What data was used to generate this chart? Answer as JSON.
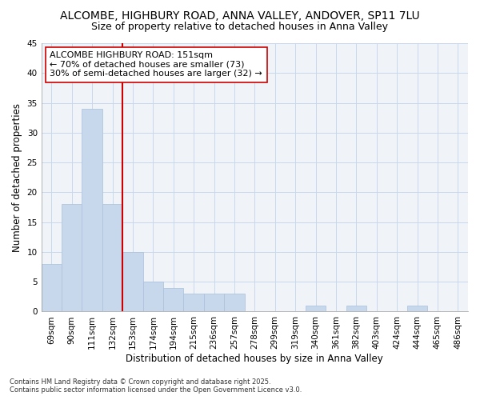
{
  "title1": "ALCOMBE, HIGHBURY ROAD, ANNA VALLEY, ANDOVER, SP11 7LU",
  "title2": "Size of property relative to detached houses in Anna Valley",
  "xlabel": "Distribution of detached houses by size in Anna Valley",
  "ylabel": "Number of detached properties",
  "categories": [
    "69sqm",
    "90sqm",
    "111sqm",
    "132sqm",
    "153sqm",
    "174sqm",
    "194sqm",
    "215sqm",
    "236sqm",
    "257sqm",
    "278sqm",
    "299sqm",
    "319sqm",
    "340sqm",
    "361sqm",
    "382sqm",
    "403sqm",
    "424sqm",
    "444sqm",
    "465sqm",
    "486sqm"
  ],
  "values": [
    8,
    18,
    34,
    18,
    10,
    5,
    4,
    3,
    3,
    3,
    0,
    0,
    0,
    1,
    0,
    1,
    0,
    0,
    1,
    0,
    0
  ],
  "bar_color": "#c8d8ec",
  "bar_edge_color": "#aabfda",
  "vline_color": "#cc0000",
  "annotation_text": "ALCOMBE HIGHBURY ROAD: 151sqm\n← 70% of detached houses are smaller (73)\n30% of semi-detached houses are larger (32) →",
  "annotation_box_color": "#ffffff",
  "annotation_box_edge_color": "#cc0000",
  "ylim": [
    0,
    45
  ],
  "yticks": [
    0,
    5,
    10,
    15,
    20,
    25,
    30,
    35,
    40,
    45
  ],
  "background_color": "#f0f4f8",
  "grid_color": "#c8d8ec",
  "footnote": "Contains HM Land Registry data © Crown copyright and database right 2025.\nContains public sector information licensed under the Open Government Licence v3.0.",
  "title_fontsize": 10,
  "subtitle_fontsize": 9,
  "tick_fontsize": 7.5,
  "label_fontsize": 8.5,
  "annot_fontsize": 8
}
